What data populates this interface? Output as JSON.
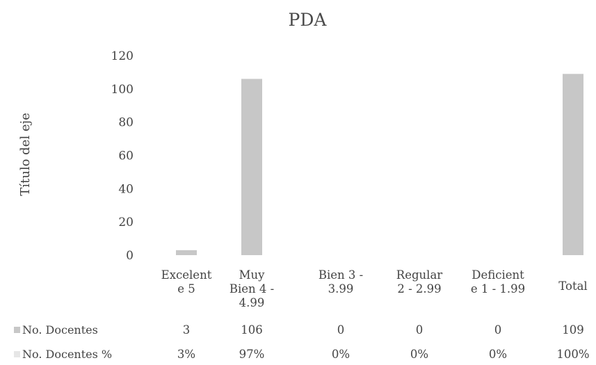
{
  "chart_data": {
    "type": "bar",
    "title": "PDA",
    "ylabel": "Título del eje",
    "xlabel": "",
    "ylim": [
      0,
      120
    ],
    "yticks": [
      0,
      20,
      40,
      60,
      80,
      100,
      120
    ],
    "grid": false,
    "legend": "data-table",
    "categories": [
      [
        "Excelent",
        "e 5"
      ],
      [
        "Muy",
        "Bien 4 -",
        "4.99"
      ],
      [
        "Bien 3 -",
        "3.99"
      ],
      [
        "Regular",
        "2 - 2.99"
      ],
      [
        "Deficient",
        "e 1 - 1.99"
      ],
      [
        "Total"
      ]
    ],
    "series": [
      {
        "name": "No. Docentes",
        "color": "#c7c7c7",
        "values": [
          3,
          106,
          0,
          0,
          0,
          109
        ],
        "labels": [
          "3",
          "106",
          "0",
          "0",
          "0",
          "109"
        ]
      },
      {
        "name": "No. Docentes %",
        "color": "#e6e6e6",
        "values": [
          0.03,
          0.97,
          0,
          0,
          0,
          1
        ],
        "labels": [
          "3%",
          "97%",
          "0%",
          "0%",
          "0%",
          "100%"
        ]
      }
    ]
  }
}
